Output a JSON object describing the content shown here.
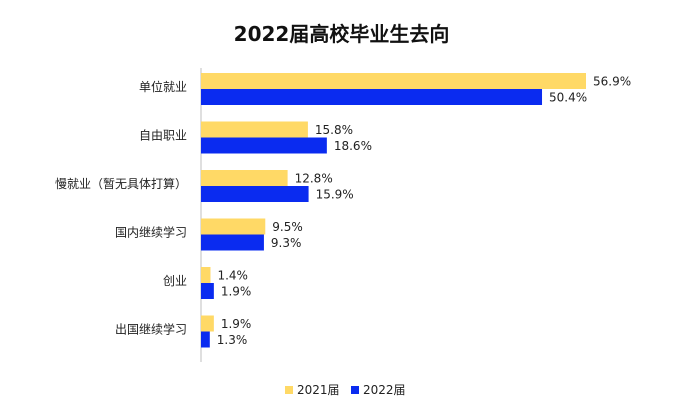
{
  "chart_data": {
    "type": "bar",
    "orientation": "horizontal",
    "title": "2022届高校毕业生去向",
    "categories": [
      "单位就业",
      "自由职业",
      "慢就业（暂无具体打算）",
      "国内继续学习",
      "创业",
      "出国继续学习"
    ],
    "series": [
      {
        "name": "2021届",
        "color": "#FFD966",
        "values": [
          56.9,
          15.8,
          12.8,
          9.5,
          1.4,
          1.9
        ],
        "labels": [
          "56.9%",
          "15.8%",
          "12.8%",
          "9.5%",
          "1.4%",
          "1.9%"
        ]
      },
      {
        "name": "2022届",
        "color": "#0A2BF0",
        "values": [
          50.4,
          18.6,
          15.9,
          9.3,
          1.9,
          1.3
        ],
        "labels": [
          "50.4%",
          "18.6%",
          "15.9%",
          "9.3%",
          "1.9%",
          "1.3%"
        ]
      }
    ],
    "value_unit": "%",
    "xlim": [
      0,
      56.9
    ],
    "legend_position": "bottom-center",
    "grid": false
  }
}
